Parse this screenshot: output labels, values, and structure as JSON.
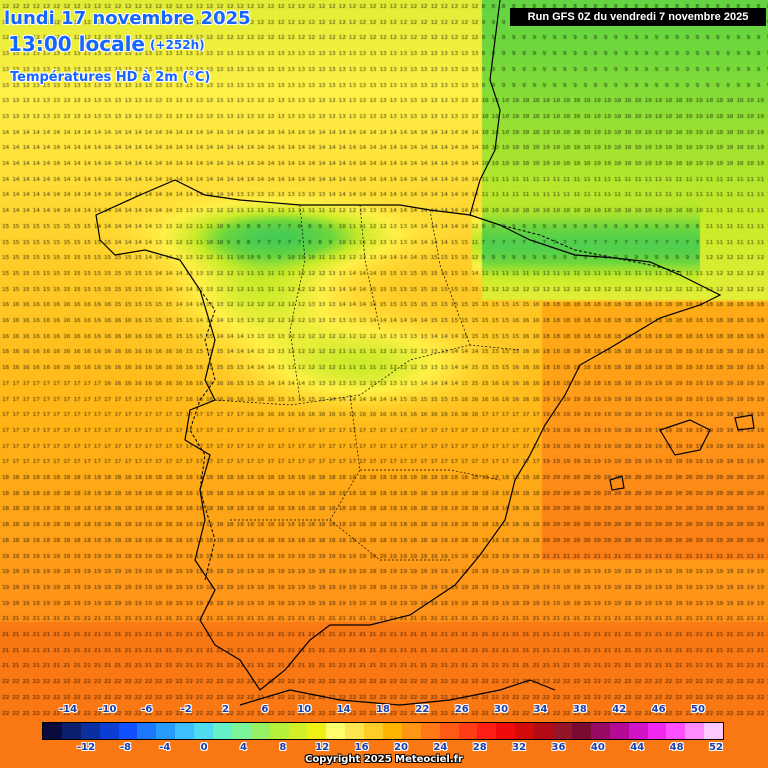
{
  "header": {
    "date_line": "lundi 17 novembre 2025",
    "time_line": "13:00 locale",
    "lead_time": "(+252h)",
    "variable_line": "Températures HD à 2m (°C)",
    "run_info": "Run GFS 0Z du vendredi 7 novembre 2025"
  },
  "legend": {
    "top_labels": [
      "-14",
      "-10",
      "-6",
      "-2",
      "2",
      "6",
      "10",
      "14",
      "18",
      "22",
      "26",
      "30",
      "34",
      "38",
      "42",
      "46",
      "50"
    ],
    "bottom_labels": [
      "-12",
      "-8",
      "-4",
      "0",
      "4",
      "8",
      "12",
      "16",
      "20",
      "24",
      "28",
      "32",
      "36",
      "40",
      "44",
      "48",
      "52"
    ],
    "colors": [
      "#0a0a3c",
      "#0c1e6e",
      "#0a2fa0",
      "#0a3ed2",
      "#1050ff",
      "#1e78ff",
      "#289bff",
      "#3cbeff",
      "#50dcf0",
      "#66f0c8",
      "#7cf59a",
      "#96f064",
      "#b4f03c",
      "#d2f028",
      "#f0f014",
      "#ffff6e",
      "#ffe650",
      "#ffcd28",
      "#ffb400",
      "#ff9614",
      "#ff7814",
      "#ff5a14",
      "#ff3c14",
      "#ff1e14",
      "#f00a0a",
      "#d20a0a",
      "#b40a14",
      "#961428",
      "#7a0a32",
      "#960a64",
      "#b40a96",
      "#d214c8",
      "#f028f0",
      "#ff50ff",
      "#ff8cff",
      "#ffc8ff"
    ]
  },
  "copyright": "Copyright 2025 Meteociel.fr"
}
